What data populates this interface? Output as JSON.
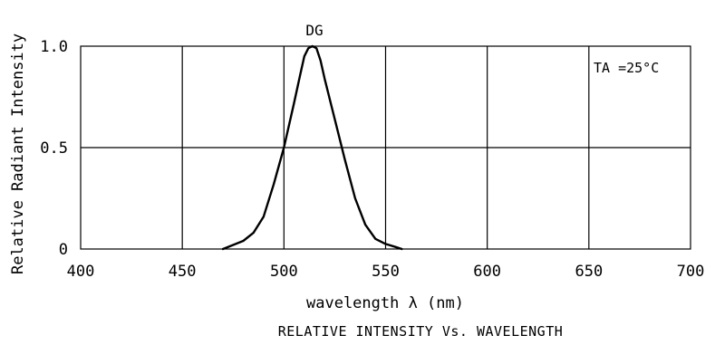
{
  "chart_data": {
    "type": "line",
    "title": "RELATIVE INTENSITY Vs. WAVELENGTH",
    "xlabel": "wavelength λ (nm)",
    "ylabel": "Relative Radiant Intensity",
    "xlim": [
      400,
      700
    ],
    "ylim": [
      0,
      1.0
    ],
    "x_ticks": [
      "400",
      "450",
      "500",
      "550",
      "600",
      "650",
      "700"
    ],
    "y_ticks": [
      "0",
      "0.5",
      "1.0"
    ],
    "grid": true,
    "annotation": "TA =25°C",
    "series": [
      {
        "name": "DG",
        "x": [
          470,
          475,
          480,
          485,
          490,
          495,
          500,
          505,
          508,
          510,
          512,
          514,
          516,
          518,
          520,
          525,
          530,
          535,
          540,
          545,
          550,
          555,
          558
        ],
        "y": [
          0.0,
          0.02,
          0.04,
          0.08,
          0.16,
          0.32,
          0.5,
          0.72,
          0.86,
          0.95,
          0.99,
          1.0,
          0.99,
          0.93,
          0.84,
          0.64,
          0.44,
          0.25,
          0.12,
          0.05,
          0.025,
          0.01,
          0.0
        ]
      }
    ]
  }
}
